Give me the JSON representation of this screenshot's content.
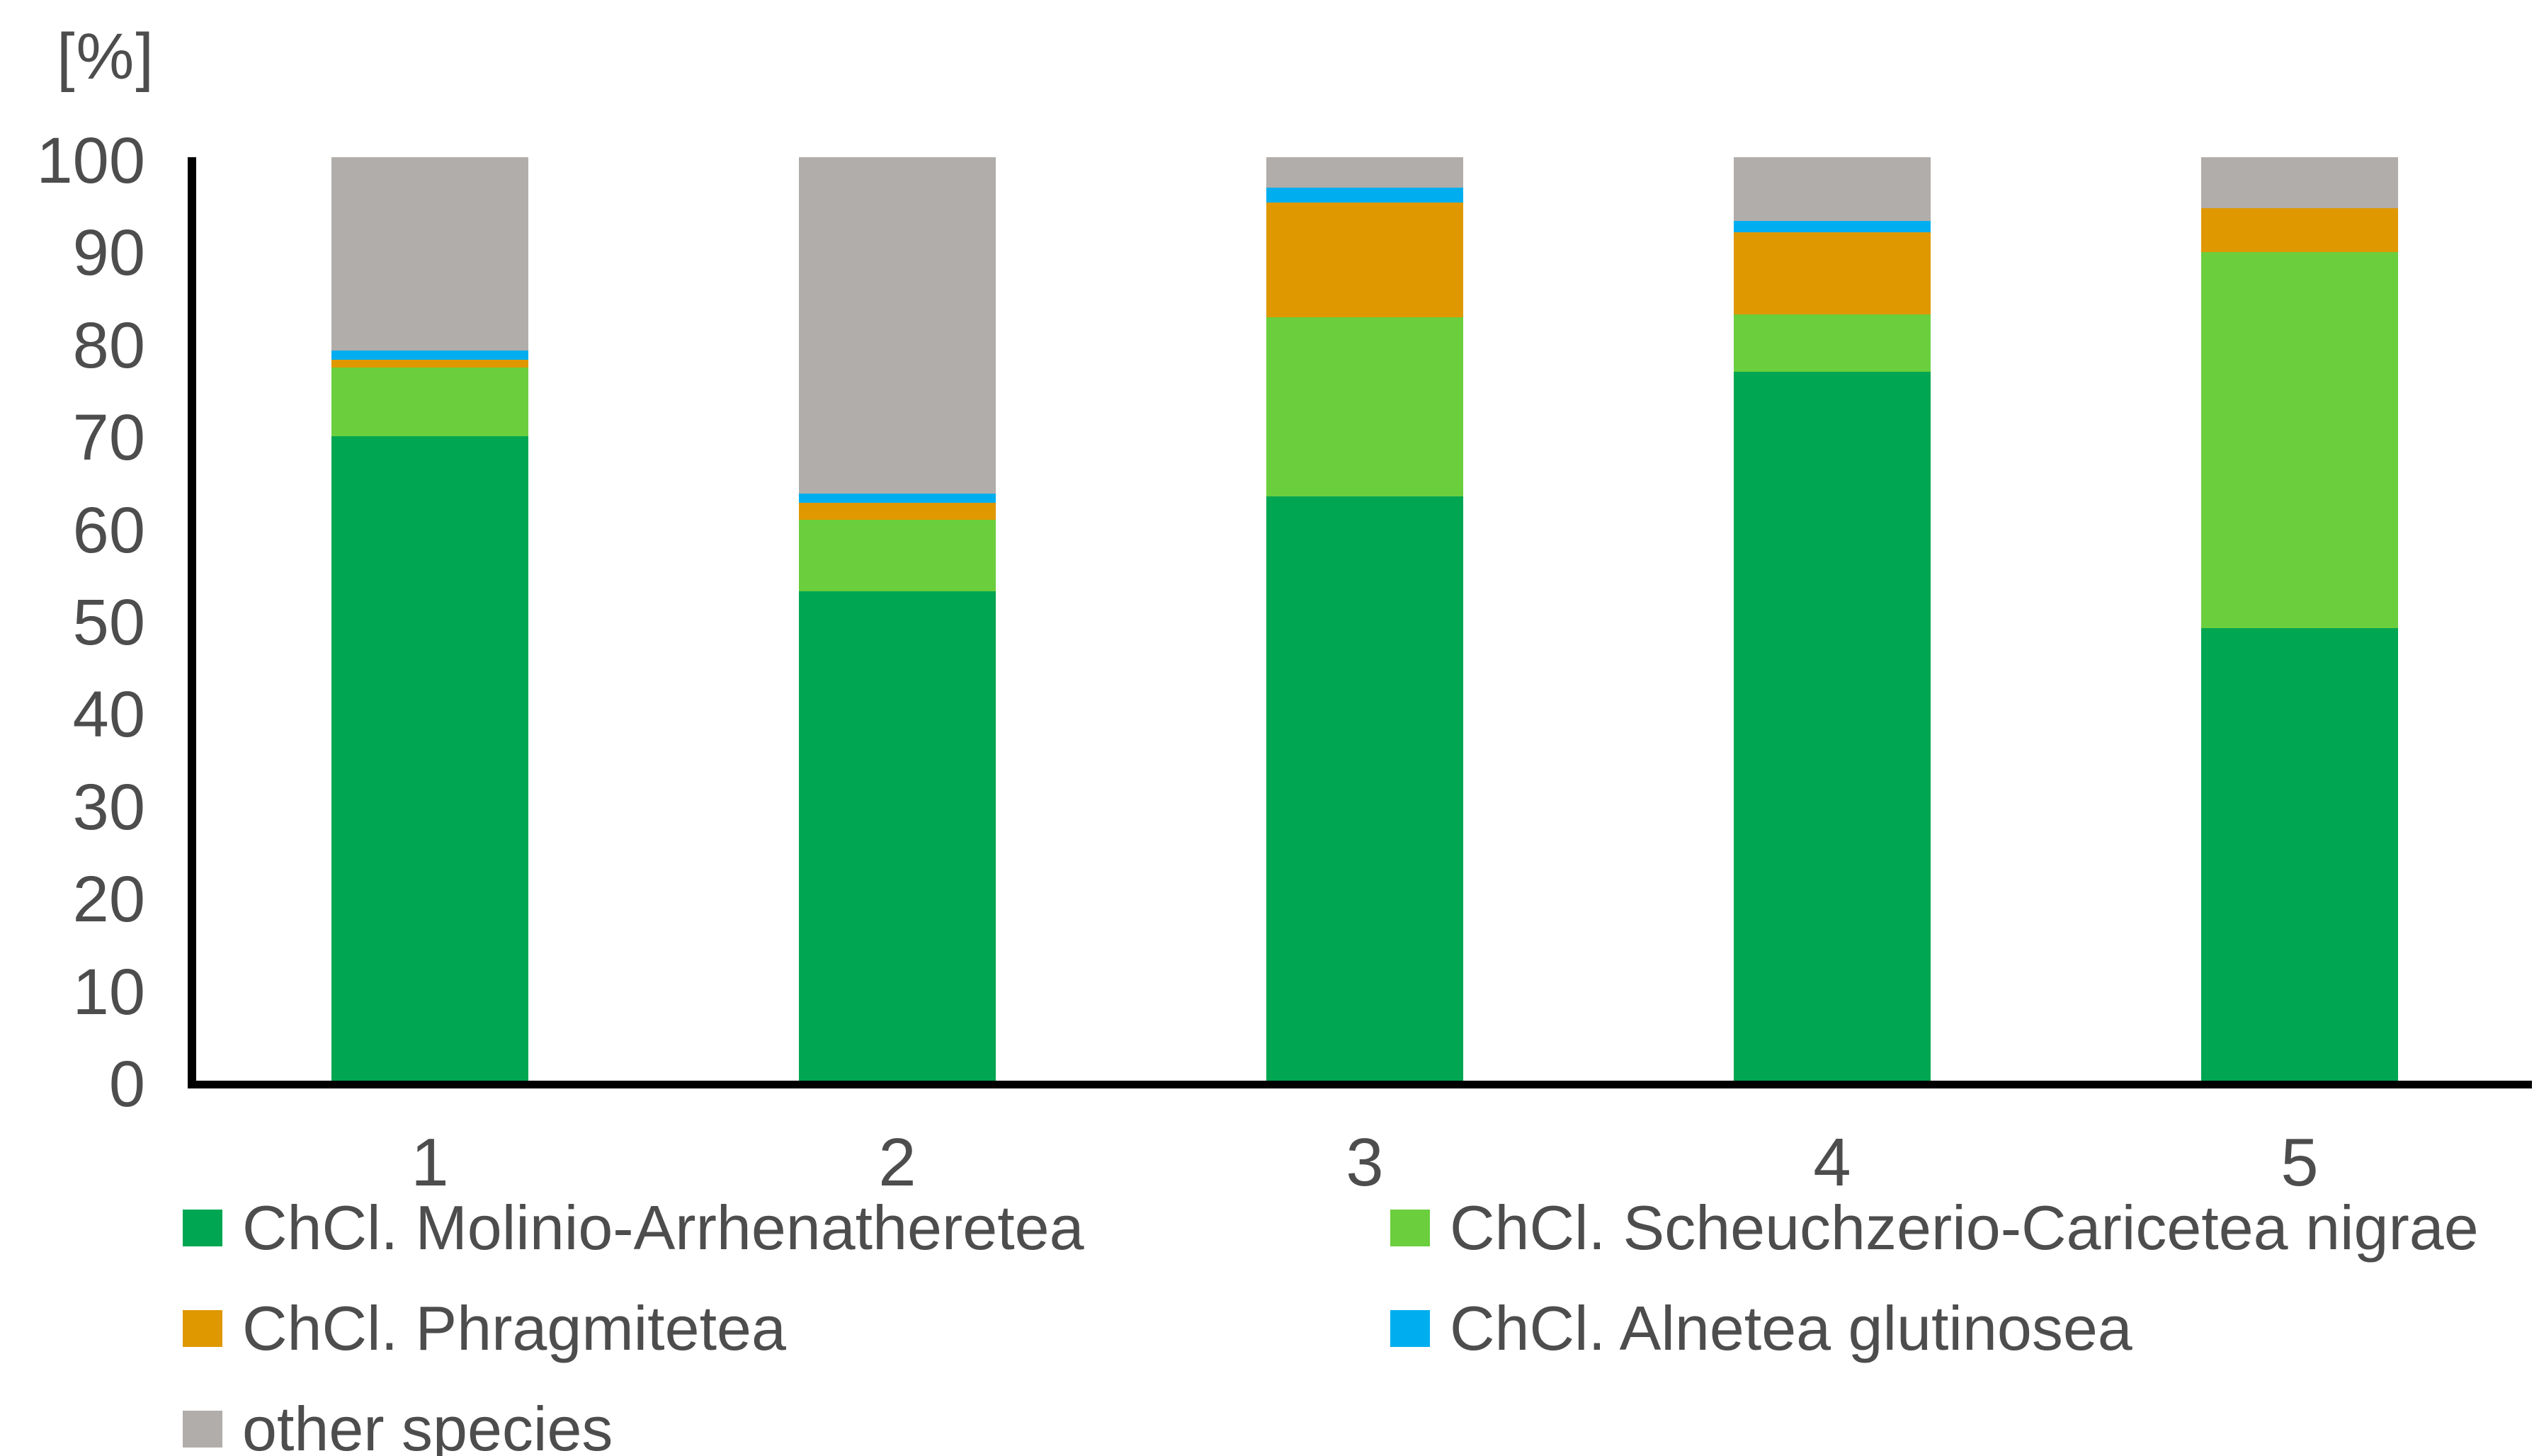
{
  "figure": {
    "unit_label": "[%]"
  },
  "chart_data": {
    "type": "bar",
    "stacked": true,
    "orientation": "vertical",
    "title": "",
    "xlabel": "",
    "ylabel": "[%]",
    "ylim": [
      0,
      100
    ],
    "yticks": [
      0,
      10,
      20,
      30,
      40,
      50,
      60,
      70,
      80,
      90,
      100
    ],
    "grid": false,
    "legend_position": "bottom",
    "legend_columns": 2,
    "categories": [
      "1",
      "2",
      "3",
      "4",
      "5"
    ],
    "series": [
      {
        "name": "ChCl. Molinio-Arrhenatheretea",
        "color": "#00A651",
        "values": [
          69.8,
          53.0,
          63.3,
          76.8,
          49.0
        ]
      },
      {
        "name": "ChCl. Scheuchzerio-Caricetea nigrae",
        "color": "#6BCE3D",
        "values": [
          7.4,
          7.7,
          19.4,
          6.2,
          40.7
        ]
      },
      {
        "name": "ChCl. Phragmitetea",
        "color": "#DF9800",
        "values": [
          0.9,
          1.9,
          12.4,
          8.9,
          4.8
        ]
      },
      {
        "name": "ChCl. Alnetea glutinosea",
        "color": "#00AEEF",
        "values": [
          1.0,
          1.0,
          1.6,
          1.2,
          0.0
        ]
      },
      {
        "name": "other species",
        "color": "#B1ADAA",
        "values": [
          20.9,
          36.4,
          3.3,
          6.9,
          5.5
        ]
      }
    ]
  },
  "colors": {
    "axis": "#000000",
    "tick_text": "#4d4d4d",
    "background": "#ffffff"
  }
}
